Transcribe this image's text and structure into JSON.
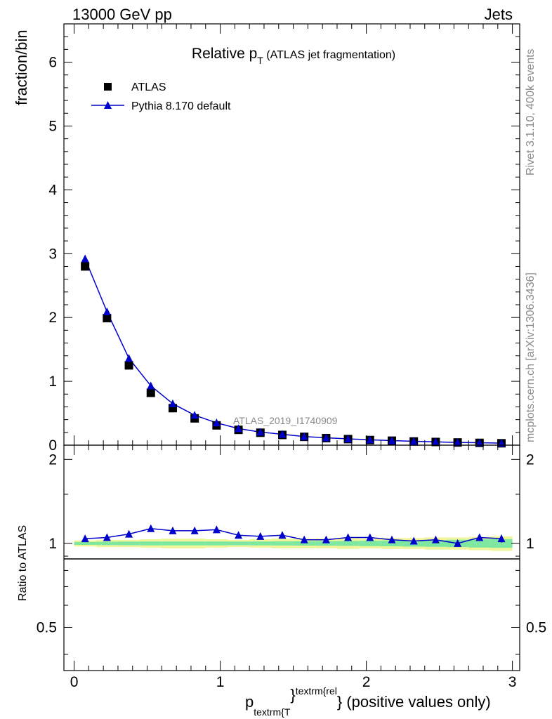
{
  "header": {
    "left": "13000 GeV pp",
    "right": "Jets"
  },
  "side_labels": {
    "rivet": "Rivet 3.1.10,  400k events",
    "mcplots": "mcplots.cern.ch [arXiv:1306.3436]"
  },
  "chart_data": [
    {
      "type": "scatter",
      "title": {
        "main": "Relative p",
        "sub": "T",
        "paren": " (ATLAS jet fragmentation)"
      },
      "analysis_label": "ATLAS_2019_I1740909",
      "xlabel": {
        "p": "p",
        "sub": "textrm{T",
        "sup": "textrm{rel",
        "tail": "} (positive values only)"
      },
      "ylabel": "fraction/bin",
      "xlim": [
        -0.07,
        3.05
      ],
      "ylim": [
        0,
        6.6
      ],
      "xticks": [
        0,
        1,
        2,
        3
      ],
      "yticks": [
        0,
        1,
        2,
        3,
        4,
        5,
        6
      ],
      "x": [
        0.075,
        0.225,
        0.375,
        0.525,
        0.675,
        0.825,
        0.975,
        1.125,
        1.275,
        1.425,
        1.575,
        1.725,
        1.875,
        2.025,
        2.175,
        2.325,
        2.475,
        2.625,
        2.775,
        2.925
      ],
      "series": [
        {
          "name": "ATLAS",
          "marker": "square",
          "color": "#000000",
          "values": [
            2.8,
            1.99,
            1.25,
            0.82,
            0.58,
            0.42,
            0.31,
            0.24,
            0.195,
            0.16,
            0.13,
            0.11,
            0.095,
            0.08,
            0.07,
            0.058,
            0.05,
            0.042,
            0.036,
            0.03
          ]
        },
        {
          "name": "Pythia 8.170 default",
          "marker": "triangle",
          "color": "#0000cc",
          "values": [
            2.92,
            2.09,
            1.36,
            0.93,
            0.65,
            0.47,
            0.35,
            0.26,
            0.205,
            0.17,
            0.135,
            0.115,
            0.099,
            0.084,
            0.072,
            0.06,
            0.052,
            0.042,
            0.038,
            0.031
          ]
        }
      ],
      "legend": "top-left"
    },
    {
      "type": "line",
      "ylabel": "Ratio to ATLAS",
      "xlim": [
        -0.07,
        3.05
      ],
      "ylim": [
        0.35,
        2.25
      ],
      "xticks": [
        0,
        1,
        2,
        3
      ],
      "yticks": [
        0.5,
        1,
        2
      ],
      "x": [
        0.075,
        0.225,
        0.375,
        0.525,
        0.675,
        0.825,
        0.975,
        1.125,
        1.275,
        1.425,
        1.575,
        1.725,
        1.875,
        2.025,
        2.175,
        2.325,
        2.475,
        2.625,
        2.775,
        2.925
      ],
      "ratio": [
        1.04,
        1.05,
        1.08,
        1.13,
        1.11,
        1.11,
        1.12,
        1.07,
        1.06,
        1.07,
        1.03,
        1.03,
        1.05,
        1.05,
        1.03,
        1.02,
        1.03,
        1.0,
        1.05,
        1.04
      ],
      "ratio_err": [
        0.005,
        0.005,
        0.006,
        0.007,
        0.007,
        0.008,
        0.009,
        0.01,
        0.01,
        0.012,
        0.013,
        0.014,
        0.016,
        0.018,
        0.02,
        0.022,
        0.025,
        0.028,
        0.03,
        0.033
      ],
      "band_yellow": [
        0.025,
        0.03,
        0.03,
        0.035,
        0.04,
        0.04,
        0.035,
        0.03,
        0.035,
        0.04,
        0.04,
        0.04,
        0.045,
        0.04,
        0.045,
        0.045,
        0.05,
        0.05,
        0.055,
        0.06
      ],
      "band_green": [
        0.012,
        0.014,
        0.015,
        0.016,
        0.016,
        0.016,
        0.016,
        0.015,
        0.016,
        0.017,
        0.018,
        0.019,
        0.02,
        0.022,
        0.024,
        0.026,
        0.028,
        0.03,
        0.034,
        0.036
      ]
    }
  ]
}
